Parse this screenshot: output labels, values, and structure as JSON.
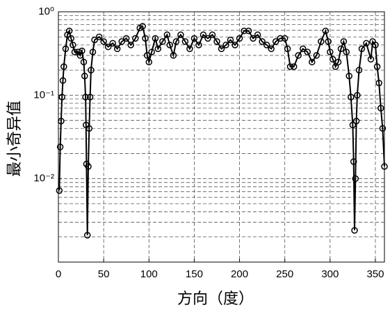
{
  "chart_data": {
    "type": "line",
    "xlabel": "方向（度）",
    "ylabel": "最小奇异值",
    "x": [
      1,
      2,
      3,
      4,
      5,
      6,
      8,
      10,
      12,
      14,
      16,
      18,
      22,
      24,
      26,
      28,
      29,
      30,
      30.5,
      31,
      32,
      33,
      34,
      35,
      36,
      38,
      40,
      45,
      50,
      55,
      60,
      65,
      70,
      75,
      80,
      85,
      90,
      93,
      96,
      98,
      100,
      103,
      107,
      110,
      115,
      120,
      123,
      127,
      130,
      135,
      140,
      145,
      150,
      155,
      160,
      165,
      170,
      175,
      180,
      185,
      190,
      195,
      200,
      205,
      210,
      215,
      220,
      225,
      230,
      235,
      240,
      245,
      250,
      253,
      256,
      260,
      265,
      270,
      275,
      280,
      285,
      290,
      295,
      298,
      300,
      303,
      306,
      309,
      312,
      315,
      318,
      321,
      323,
      325,
      326,
      327,
      328,
      329,
      330,
      332,
      335,
      340,
      345,
      347,
      350,
      352,
      354,
      356,
      358,
      360
    ],
    "series": [
      {
        "name": "最小奇异值",
        "color": "#000000",
        "values": [
          0.0072,
          0.024,
          0.049,
          0.095,
          0.15,
          0.22,
          0.36,
          0.53,
          0.59,
          0.48,
          0.4,
          0.33,
          0.33,
          0.3,
          0.34,
          0.25,
          0.17,
          0.095,
          0.044,
          0.015,
          0.0021,
          0.014,
          0.04,
          0.095,
          0.2,
          0.33,
          0.46,
          0.5,
          0.44,
          0.38,
          0.42,
          0.36,
          0.44,
          0.48,
          0.4,
          0.48,
          0.64,
          0.67,
          0.48,
          0.3,
          0.25,
          0.33,
          0.48,
          0.36,
          0.44,
          0.53,
          0.4,
          0.3,
          0.44,
          0.53,
          0.44,
          0.36,
          0.48,
          0.4,
          0.53,
          0.48,
          0.53,
          0.44,
          0.36,
          0.4,
          0.46,
          0.4,
          0.48,
          0.59,
          0.59,
          0.48,
          0.53,
          0.44,
          0.4,
          0.36,
          0.44,
          0.48,
          0.48,
          0.36,
          0.22,
          0.22,
          0.3,
          0.36,
          0.33,
          0.25,
          0.3,
          0.44,
          0.59,
          0.44,
          0.33,
          0.27,
          0.22,
          0.25,
          0.36,
          0.44,
          0.33,
          0.17,
          0.095,
          0.044,
          0.016,
          0.0024,
          0.01,
          0.049,
          0.1,
          0.2,
          0.36,
          0.42,
          0.27,
          0.44,
          0.4,
          0.22,
          0.14,
          0.07,
          0.04,
          0.014
        ]
      }
    ],
    "xlim": [
      0,
      360
    ],
    "xticks": [
      0,
      50,
      100,
      150,
      200,
      250,
      300,
      350
    ],
    "ylim": [
      0.001,
      1
    ],
    "log_y": true,
    "yticks": [
      {
        "value": 1,
        "label": "10⁰"
      },
      {
        "value": 0.1,
        "label": "10⁻¹"
      },
      {
        "value": 0.01,
        "label": "10⁻²"
      }
    ],
    "yminorticks": [
      0.002,
      0.003,
      0.004,
      0.005,
      0.006,
      0.007,
      0.008,
      0.009,
      0.02,
      0.03,
      0.04,
      0.05,
      0.06,
      0.07,
      0.08,
      0.09,
      0.2,
      0.3,
      0.4,
      0.5,
      0.6,
      0.7,
      0.8,
      0.9
    ],
    "grid": true
  }
}
